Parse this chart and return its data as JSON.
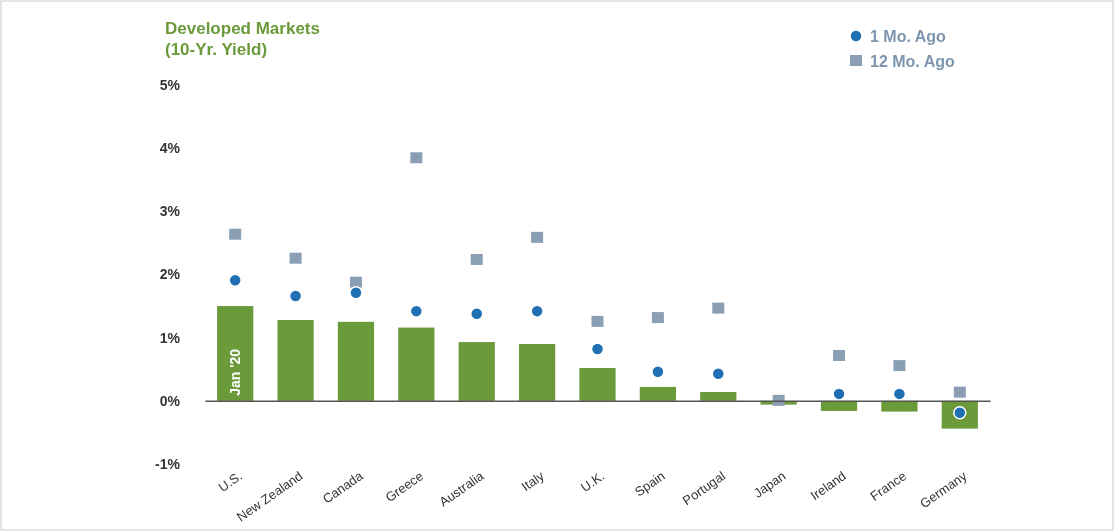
{
  "chart_data": {
    "type": "bar",
    "title": "Developed Markets\n(10-Yr. Yield)",
    "categories": [
      "U.S.",
      "New Zealand",
      "Canada",
      "Greece",
      "Australia",
      "Italy",
      "U.K.",
      "Spain",
      "Portugal",
      "Japan",
      "Ireland",
      "France",
      "Germany"
    ],
    "series": [
      {
        "color": "#6a9a3a",
        "values": [
          1.5,
          1.28,
          1.25,
          1.16,
          0.93,
          0.9,
          0.52,
          0.22,
          0.14,
          -0.06,
          -0.16,
          -0.17,
          -0.44
        ]
      },
      {
        "type": "scatter",
        "name": "12 Mo. Ago",
        "color": "#8a9fb3",
        "marker": "square",
        "values": [
          2.63,
          2.25,
          1.87,
          3.84,
          2.23,
          2.58,
          1.25,
          1.31,
          1.46,
          0.0,
          0.71,
          0.55,
          0.13
        ]
      },
      {
        "type": "scatter",
        "name": "1 Mo. Ago",
        "color": "#1f6fb2",
        "marker": "circle",
        "values": [
          1.91,
          1.66,
          1.71,
          1.42,
          1.38,
          1.42,
          0.82,
          0.46,
          0.43,
          null,
          0.11,
          0.11,
          -0.19
        ]
      }
    ],
    "annotations": [
      "Jan '20"
    ],
    "ylim": [
      -1,
      5
    ],
    "yticks": [
      {
        "value": -1,
        "label": "-1%"
      },
      {
        "value": 0,
        "label": "0%"
      },
      {
        "value": 1,
        "label": "1%"
      },
      {
        "value": 2,
        "label": "2%"
      },
      {
        "value": 3,
        "label": "3%"
      },
      {
        "value": 4,
        "label": "4%"
      },
      {
        "value": 5,
        "label": "5%"
      }
    ],
    "legend": "top right"
  }
}
